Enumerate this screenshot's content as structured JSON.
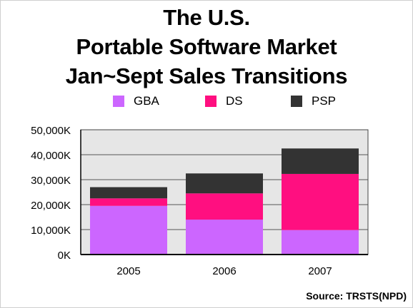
{
  "title_lines": [
    "The U.S.",
    "Portable Software Market",
    "Jan~Sept Sales Transitions"
  ],
  "source": "Source: TRSTS(NPD)",
  "chart_data": {
    "type": "bar",
    "stacked": true,
    "categories": [
      "2005",
      "2006",
      "2007"
    ],
    "series": [
      {
        "name": "GBA",
        "values": [
          19500,
          14000,
          9800
        ],
        "color": "#cc66ff"
      },
      {
        "name": "DS",
        "values": [
          3000,
          10500,
          22500
        ],
        "color": "#ff0f80"
      },
      {
        "name": "PSP",
        "values": [
          4500,
          8000,
          10200
        ],
        "color": "#333333"
      }
    ],
    "ylim": [
      0,
      50000
    ],
    "yticks": [
      0,
      10000,
      20000,
      30000,
      40000,
      50000
    ],
    "ytick_labels": [
      "0K",
      "10,000K",
      "20,000K",
      "30,000K",
      "40,000K",
      "50,000K"
    ],
    "grid": true,
    "legend": "top",
    "plot_background": "#e6e6e6"
  }
}
